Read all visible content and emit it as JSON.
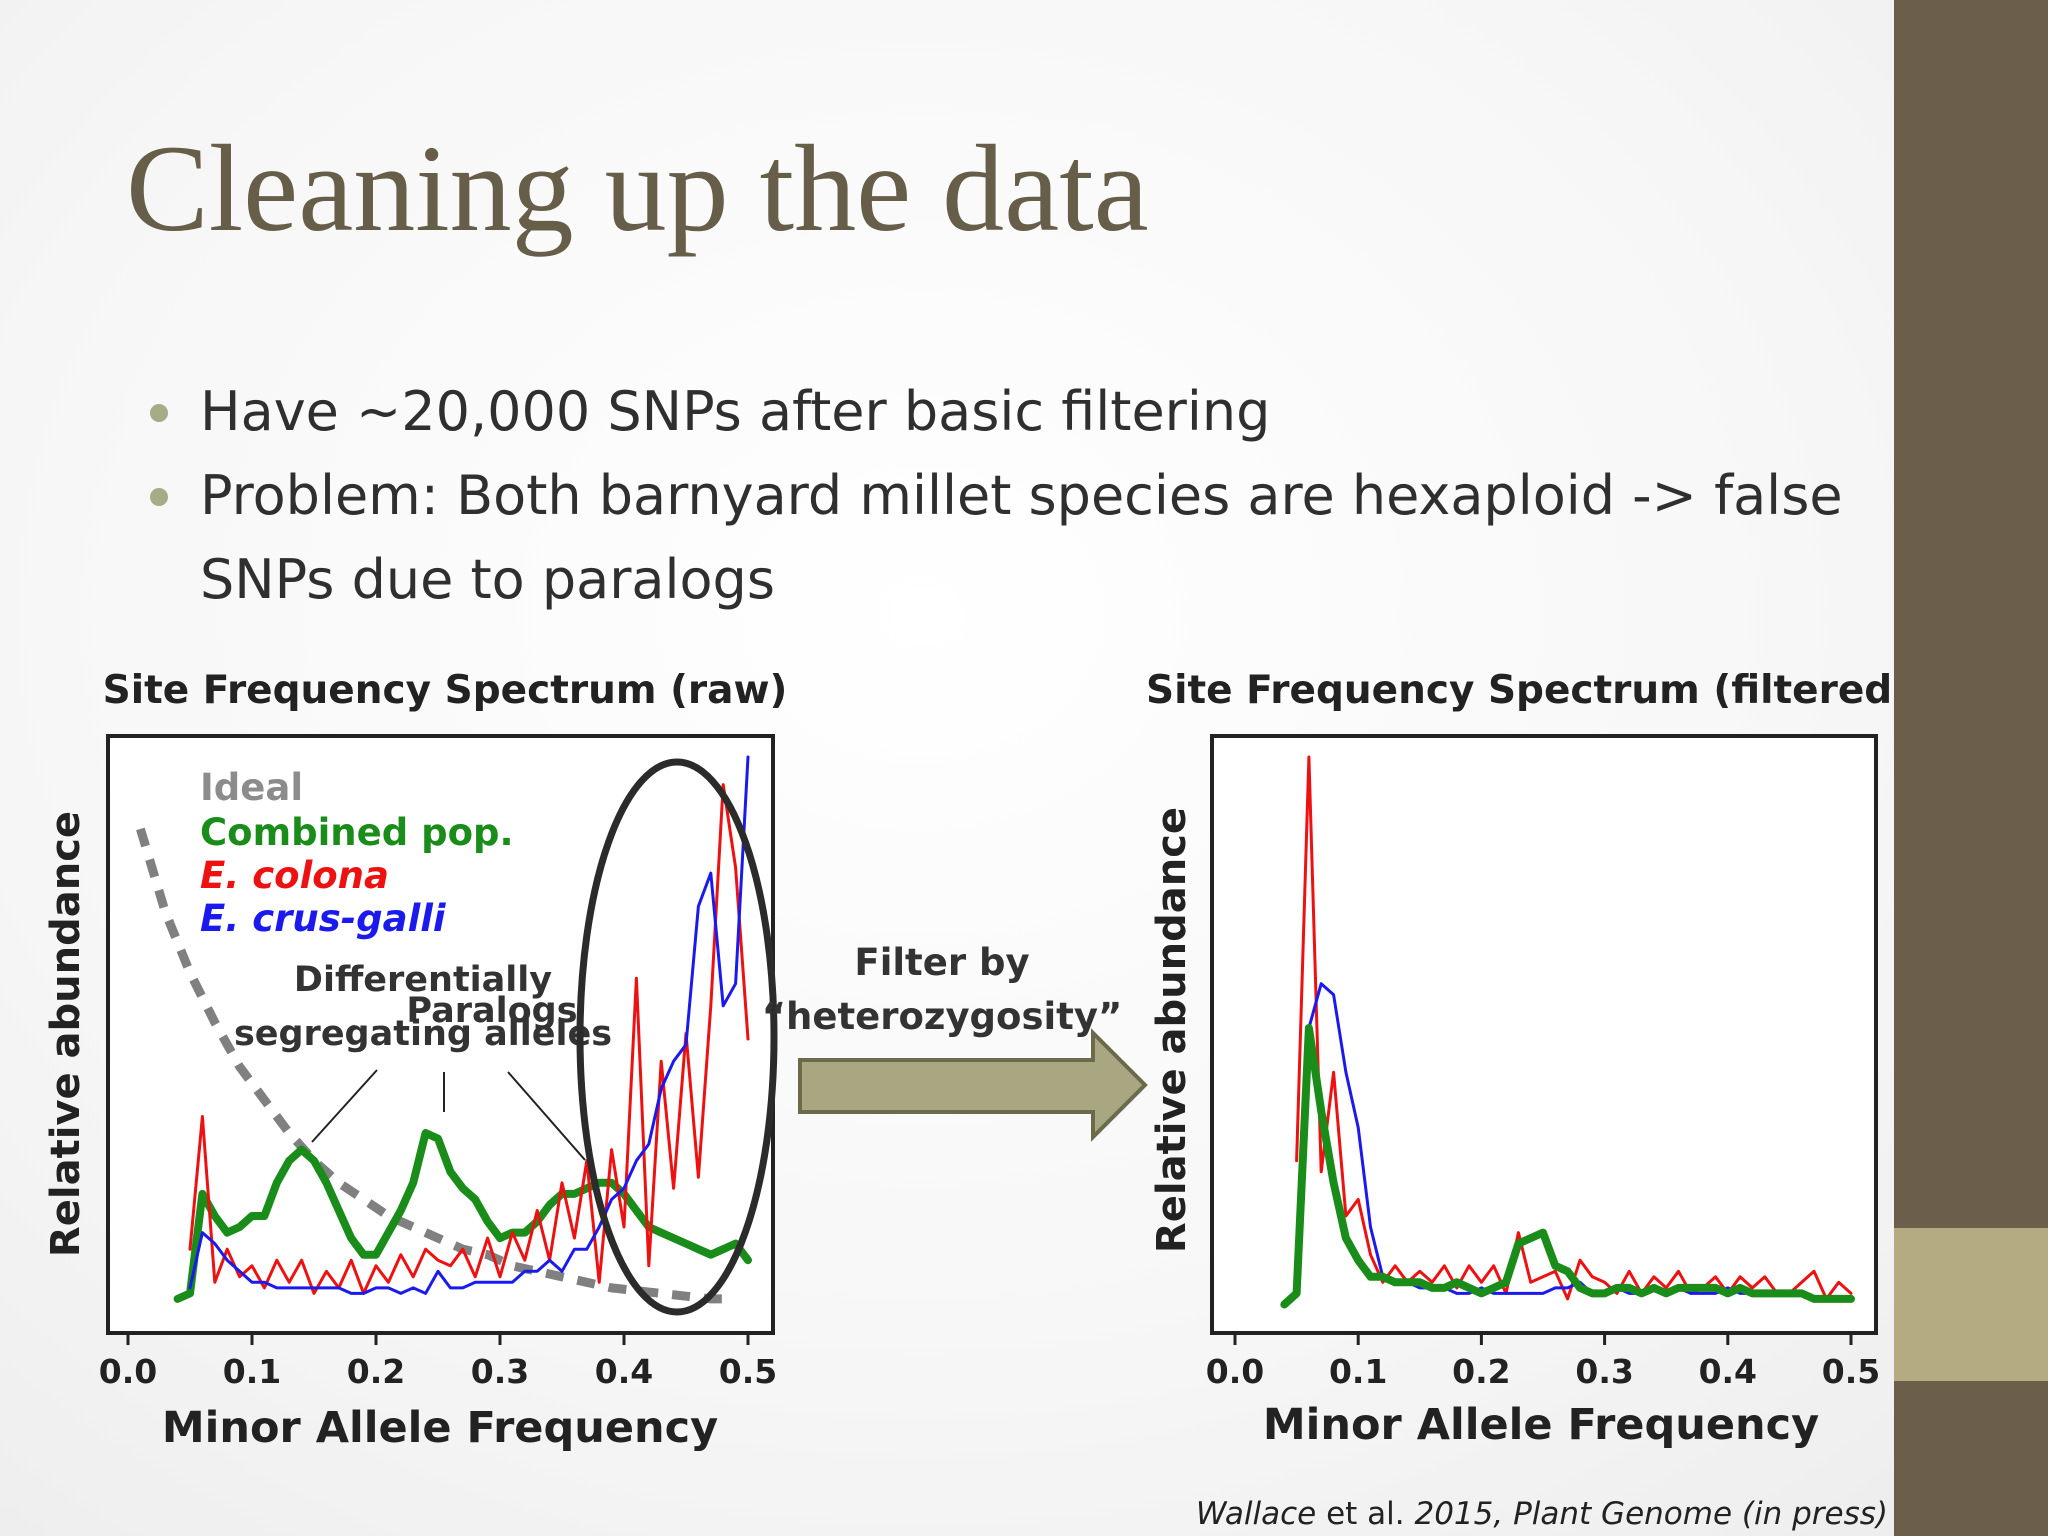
{
  "slide": {
    "title": "Cleaning up the data",
    "bullets": [
      "Have ~20,000 SNPs after basic filtering",
      "Problem: Both barnyard millet species are hexaploid -> false SNPs due to paralogs"
    ],
    "arrow_label": [
      "Filter by",
      "“heterozygosity”"
    ],
    "citation": {
      "author": "Wallace",
      "etal": " et al. ",
      "year": "2015, ",
      "journal": "Plant Genome (in press)"
    }
  },
  "colors": {
    "title": "#675e4a",
    "side_bar": "#6b5f4b",
    "side_accent": "#b4ab82",
    "bullet_dot": "#a7ab88",
    "arrow_fill": "#a9a682",
    "arrow_stroke": "#6b6a4c",
    "ideal": "#808080",
    "combined": "#1a8c1a",
    "colona": "#ee1111",
    "crus_galli": "#1a1aee"
  },
  "chart_data": [
    {
      "type": "line",
      "title": "Site Frequency Spectrum (raw)",
      "xlabel": "Minor Allele Frequency",
      "ylabel": "Relative abundance",
      "xlim": [
        0.0,
        0.5
      ],
      "ylim": [
        0,
        100
      ],
      "xticks": [
        "0.0",
        "0.1",
        "0.2",
        "0.3",
        "0.4",
        "0.5"
      ],
      "legend": [
        "Ideal",
        "Combined pop.",
        "E. colona",
        "E. crus-galli"
      ],
      "legend_position": "top-left",
      "annotations": {
        "differential": [
          "Differentially",
          "segregating alleles"
        ],
        "paralogs": "Paralogs"
      },
      "highlight_ellipse": "x 0.37-0.5",
      "series": [
        {
          "name": "Ideal",
          "style": "dashed",
          "x": [
            0.01,
            0.03,
            0.05,
            0.07,
            0.09,
            0.11,
            0.13,
            0.15,
            0.17,
            0.19,
            0.21,
            0.23,
            0.25,
            0.27,
            0.29,
            0.31,
            0.33,
            0.35,
            0.37,
            0.39,
            0.41,
            0.43,
            0.45,
            0.47,
            0.49
          ],
          "y": [
            87,
            72,
            61,
            52,
            44,
            38,
            32,
            27,
            23,
            20,
            17,
            15,
            13,
            11,
            10,
            8,
            7,
            6,
            5,
            4,
            3.5,
            3,
            2.5,
            2,
            2
          ]
        },
        {
          "name": "Combined pop.",
          "x": [
            0.04,
            0.05,
            0.06,
            0.07,
            0.08,
            0.09,
            0.1,
            0.11,
            0.12,
            0.13,
            0.14,
            0.15,
            0.16,
            0.17,
            0.18,
            0.19,
            0.2,
            0.21,
            0.22,
            0.23,
            0.24,
            0.25,
            0.26,
            0.27,
            0.28,
            0.29,
            0.3,
            0.31,
            0.32,
            0.33,
            0.34,
            0.35,
            0.36,
            0.37,
            0.38,
            0.39,
            0.4,
            0.41,
            0.42,
            0.43,
            0.44,
            0.45,
            0.46,
            0.47,
            0.48,
            0.49,
            0.5
          ],
          "y": [
            2,
            3,
            21,
            17,
            14,
            15,
            17,
            17,
            23,
            27,
            29,
            27,
            23,
            18,
            13,
            10,
            10,
            14,
            18,
            23,
            32,
            31,
            25,
            22,
            20,
            16,
            13,
            14,
            14,
            16,
            19,
            21,
            21,
            22,
            23,
            23,
            21,
            18,
            15,
            14,
            13,
            12,
            11,
            10,
            11,
            12,
            9
          ]
        },
        {
          "name": "E. colona",
          "x": [
            0.05,
            0.06,
            0.07,
            0.08,
            0.09,
            0.1,
            0.11,
            0.12,
            0.13,
            0.14,
            0.15,
            0.16,
            0.17,
            0.18,
            0.19,
            0.2,
            0.21,
            0.22,
            0.23,
            0.24,
            0.25,
            0.26,
            0.27,
            0.28,
            0.29,
            0.3,
            0.31,
            0.32,
            0.33,
            0.34,
            0.35,
            0.36,
            0.37,
            0.38,
            0.39,
            0.4,
            0.41,
            0.42,
            0.43,
            0.44,
            0.45,
            0.46,
            0.47,
            0.48,
            0.49,
            0.5
          ],
          "y": [
            11,
            35,
            5,
            11,
            6,
            8,
            4,
            9,
            5,
            9,
            3,
            7,
            4,
            9,
            3,
            8,
            5,
            10,
            6,
            11,
            9,
            8,
            11,
            6,
            13,
            6,
            14,
            9,
            18,
            9,
            23,
            13,
            27,
            5,
            29,
            15,
            60,
            8,
            45,
            22,
            50,
            24,
            55,
            95,
            80,
            49
          ]
        },
        {
          "name": "E. crus-galli",
          "x": [
            0.05,
            0.06,
            0.07,
            0.08,
            0.09,
            0.1,
            0.11,
            0.12,
            0.13,
            0.14,
            0.15,
            0.16,
            0.17,
            0.18,
            0.19,
            0.2,
            0.21,
            0.22,
            0.23,
            0.24,
            0.25,
            0.26,
            0.27,
            0.28,
            0.29,
            0.3,
            0.31,
            0.32,
            0.33,
            0.34,
            0.35,
            0.36,
            0.37,
            0.38,
            0.39,
            0.4,
            0.41,
            0.42,
            0.43,
            0.44,
            0.45,
            0.46,
            0.47,
            0.48,
            0.49,
            0.5
          ],
          "y": [
            4,
            14,
            12,
            9,
            7,
            5,
            5,
            4,
            4,
            4,
            4,
            4,
            4,
            3,
            3,
            4,
            4,
            3,
            4,
            3,
            7,
            4,
            4,
            5,
            5,
            5,
            5,
            7,
            7,
            9,
            7,
            11,
            11,
            15,
            20,
            22,
            27,
            30,
            40,
            45,
            48,
            73,
            79,
            55,
            59,
            100
          ]
        }
      ]
    },
    {
      "type": "line",
      "title": "Site Frequency Spectrum (filtered)",
      "xlabel": "Minor Allele Frequency",
      "ylabel": "Relative abundance",
      "xlim": [
        0.0,
        0.5
      ],
      "ylim": [
        0,
        100
      ],
      "xticks": [
        "0.0",
        "0.1",
        "0.2",
        "0.3",
        "0.4",
        "0.5"
      ],
      "series": [
        {
          "name": "E. colona",
          "x": [
            0.05,
            0.06,
            0.07,
            0.08,
            0.09,
            0.1,
            0.11,
            0.12,
            0.13,
            0.14,
            0.15,
            0.16,
            0.17,
            0.18,
            0.19,
            0.2,
            0.21,
            0.22,
            0.23,
            0.24,
            0.25,
            0.26,
            0.27,
            0.28,
            0.29,
            0.3,
            0.31,
            0.32,
            0.33,
            0.34,
            0.35,
            0.36,
            0.37,
            0.38,
            0.39,
            0.4,
            0.41,
            0.42,
            0.43,
            0.44,
            0.45,
            0.46,
            0.47,
            0.48,
            0.49,
            0.5
          ],
          "y": [
            27,
            100,
            25,
            43,
            17,
            20,
            10,
            5,
            8,
            5,
            7,
            5,
            8,
            4,
            8,
            5,
            8,
            3,
            14,
            5,
            6,
            7,
            2,
            9,
            6,
            5,
            3,
            7,
            3,
            6,
            4,
            7,
            3,
            4,
            6,
            3,
            6,
            4,
            6,
            3,
            3,
            5,
            7,
            2,
            5,
            3
          ]
        },
        {
          "name": "E. crus-galli",
          "x": [
            0.05,
            0.06,
            0.07,
            0.08,
            0.09,
            0.1,
            0.11,
            0.12,
            0.13,
            0.14,
            0.15,
            0.16,
            0.17,
            0.18,
            0.19,
            0.2,
            0.21,
            0.22,
            0.23,
            0.24,
            0.25,
            0.26,
            0.27,
            0.28,
            0.29,
            0.3,
            0.31,
            0.32,
            0.33,
            0.34,
            0.35,
            0.36,
            0.37,
            0.38,
            0.39,
            0.4,
            0.41,
            0.42,
            0.43,
            0.44,
            0.45,
            0.46,
            0.47,
            0.48,
            0.49,
            0.5
          ],
          "y": [
            11,
            51,
            59,
            57,
            43,
            33,
            15,
            6,
            5,
            5,
            4,
            4,
            4,
            3,
            3,
            4,
            3,
            3,
            3,
            3,
            3,
            4,
            4,
            5,
            3,
            3,
            4,
            3,
            3,
            4,
            3,
            4,
            3,
            3,
            3,
            4,
            3,
            3,
            3,
            3,
            3,
            3,
            2,
            2,
            2,
            2
          ]
        },
        {
          "name": "Combined pop.",
          "x": [
            0.04,
            0.05,
            0.06,
            0.07,
            0.08,
            0.09,
            0.1,
            0.11,
            0.12,
            0.13,
            0.14,
            0.15,
            0.16,
            0.17,
            0.18,
            0.19,
            0.2,
            0.21,
            0.22,
            0.23,
            0.24,
            0.25,
            0.26,
            0.27,
            0.28,
            0.29,
            0.3,
            0.31,
            0.32,
            0.33,
            0.34,
            0.35,
            0.36,
            0.37,
            0.38,
            0.39,
            0.4,
            0.41,
            0.42,
            0.43,
            0.44,
            0.45,
            0.46,
            0.47,
            0.48,
            0.49,
            0.5
          ],
          "y": [
            1,
            3,
            51,
            36,
            23,
            13,
            9,
            6,
            6,
            5,
            5,
            5,
            4,
            4,
            5,
            4,
            3,
            4,
            5,
            12,
            13,
            14,
            8,
            7,
            4,
            3,
            3,
            4,
            4,
            3,
            4,
            3,
            4,
            4,
            4,
            4,
            3,
            4,
            3,
            3,
            3,
            3,
            3,
            2,
            2,
            2,
            2
          ]
        }
      ]
    }
  ]
}
